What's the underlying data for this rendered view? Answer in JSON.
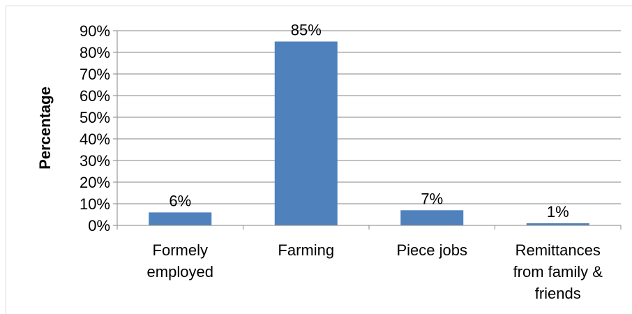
{
  "chart_data": {
    "type": "bar",
    "title": "",
    "xlabel": "",
    "ylabel": "Percentage",
    "categories": [
      [
        "Formely",
        "employed"
      ],
      [
        "Farming"
      ],
      [
        "Piece jobs"
      ],
      [
        "Remittances",
        "from family &",
        "friends"
      ]
    ],
    "values": [
      6,
      85,
      7,
      1
    ],
    "data_labels": [
      "6%",
      "85%",
      "7%",
      "1%"
    ],
    "ylim": [
      0,
      90
    ],
    "yticks": [
      0,
      10,
      20,
      30,
      40,
      50,
      60,
      70,
      80,
      90
    ],
    "ytick_labels": [
      "0%",
      "10%",
      "20%",
      "30%",
      "40%",
      "50%",
      "60%",
      "70%",
      "80%",
      "90%"
    ],
    "grid": true,
    "legend": "none",
    "bar_color": "#4f81bd",
    "grid_color": "#868686"
  }
}
